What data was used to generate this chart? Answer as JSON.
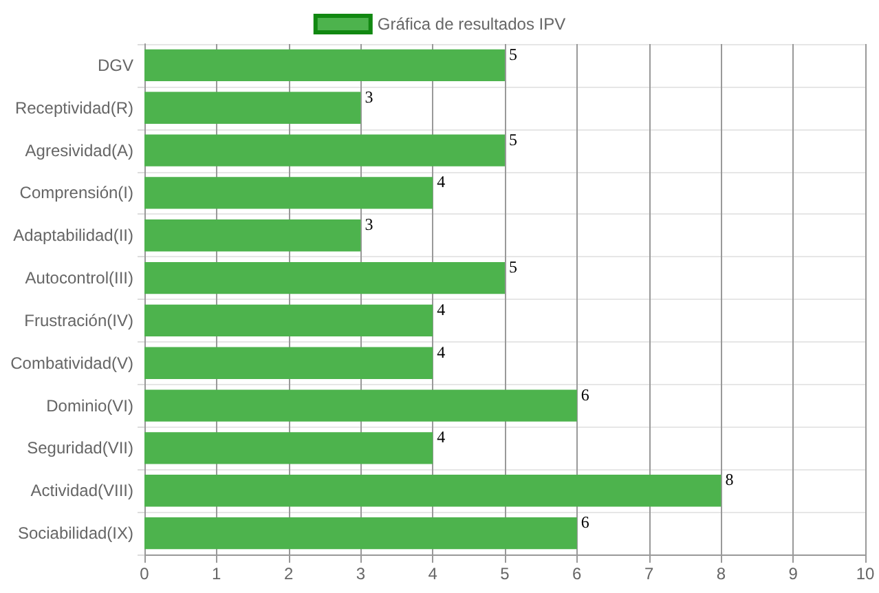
{
  "chart_data": {
    "type": "bar",
    "orientation": "horizontal",
    "categories": [
      "DGV",
      "Receptividad(R)",
      "Agresividad(A)",
      "Comprensión(I)",
      "Adaptabilidad(II)",
      "Autocontrol(III)",
      "Frustración(IV)",
      "Combatividad(V)",
      "Dominio(VI)",
      "Seguridad(VII)",
      "Actividad(VIII)",
      "Sociabilidad(IX)"
    ],
    "series": [
      {
        "name": "Gráfica de resultados IPV",
        "color": "#4db34d",
        "values": [
          5,
          3,
          5,
          4,
          3,
          5,
          4,
          4,
          6,
          4,
          8,
          6
        ]
      }
    ],
    "xlim": [
      0,
      10
    ],
    "xticks": [
      0,
      1,
      2,
      3,
      4,
      5,
      6,
      7,
      8,
      9,
      10
    ],
    "grid": true,
    "legend": "top",
    "data_labels": true
  }
}
